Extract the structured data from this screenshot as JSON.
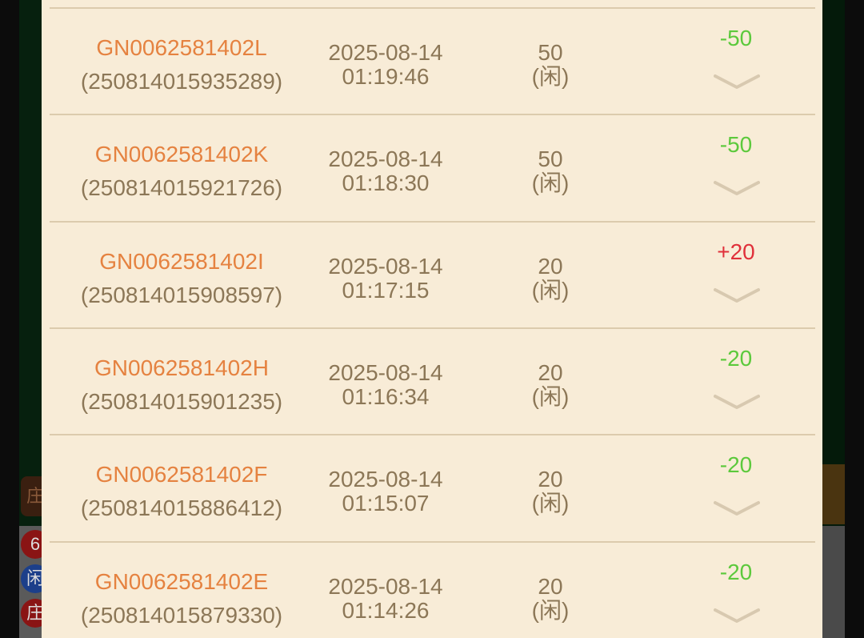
{
  "colors": {
    "win": "#e0303a",
    "loss": "#5cc93c",
    "order_id": "#e58240",
    "text": "#8c7757",
    "panel": "#f8ecd7"
  },
  "background": {
    "chips": [
      "6",
      "闲",
      "庄"
    ],
    "tab": "庄"
  },
  "records": [
    {
      "order_id": "GN0062581402L",
      "ref": "(250814015935289)",
      "date": "2025-08-14",
      "time": "01:19:46",
      "amount": "50",
      "side": "(闲)",
      "result": "-50",
      "outcome": "loss"
    },
    {
      "order_id": "GN0062581402K",
      "ref": "(250814015921726)",
      "date": "2025-08-14",
      "time": "01:18:30",
      "amount": "50",
      "side": "(闲)",
      "result": "-50",
      "outcome": "loss"
    },
    {
      "order_id": "GN0062581402I",
      "ref": "(250814015908597)",
      "date": "2025-08-14",
      "time": "01:17:15",
      "amount": "20",
      "side": "(闲)",
      "result": "+20",
      "outcome": "win"
    },
    {
      "order_id": "GN0062581402H",
      "ref": "(250814015901235)",
      "date": "2025-08-14",
      "time": "01:16:34",
      "amount": "20",
      "side": "(闲)",
      "result": "-20",
      "outcome": "loss"
    },
    {
      "order_id": "GN0062581402F",
      "ref": "(250814015886412)",
      "date": "2025-08-14",
      "time": "01:15:07",
      "amount": "20",
      "side": "(闲)",
      "result": "-20",
      "outcome": "loss"
    },
    {
      "order_id": "GN0062581402E",
      "ref": "(250814015879330)",
      "date": "2025-08-14",
      "time": "01:14:26",
      "amount": "20",
      "side": "(闲)",
      "result": "-20",
      "outcome": "loss"
    }
  ]
}
